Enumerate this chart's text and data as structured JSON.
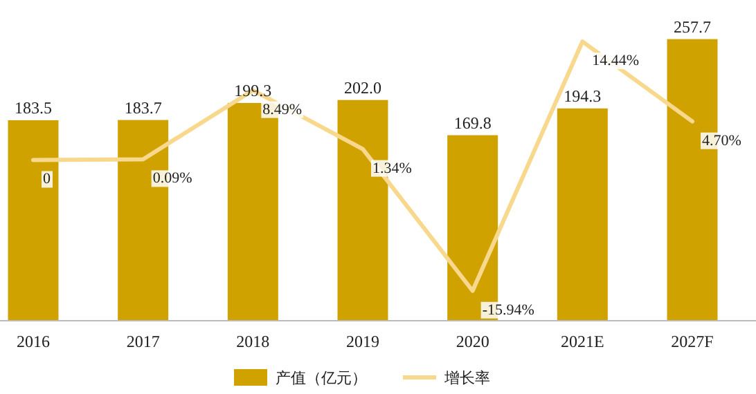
{
  "chart_data": {
    "type": "bar",
    "categories": [
      "2016",
      "2017",
      "2018",
      "2019",
      "2020",
      "2021E",
      "2027F"
    ],
    "series": [
      {
        "name": "产值（亿元）",
        "color": "#d0a200",
        "values": [
          183.5,
          183.7,
          199.3,
          202.0,
          169.8,
          194.3,
          257.7
        ],
        "value_labels": [
          "183.5",
          "183.7",
          "199.3",
          "202.0",
          "169.8",
          "194.3",
          "257.7"
        ]
      },
      {
        "name": "增长率",
        "type": "line",
        "axis": "y2",
        "color": "#f7d88c",
        "values": [
          0,
          0.09,
          8.49,
          1.34,
          -15.94,
          14.44,
          4.7
        ],
        "value_labels": [
          "0",
          "0.09%",
          "8.49%",
          "1.34%",
          "-15.94%",
          "14.44%",
          "4.70%"
        ]
      }
    ],
    "legend": "bottom"
  }
}
